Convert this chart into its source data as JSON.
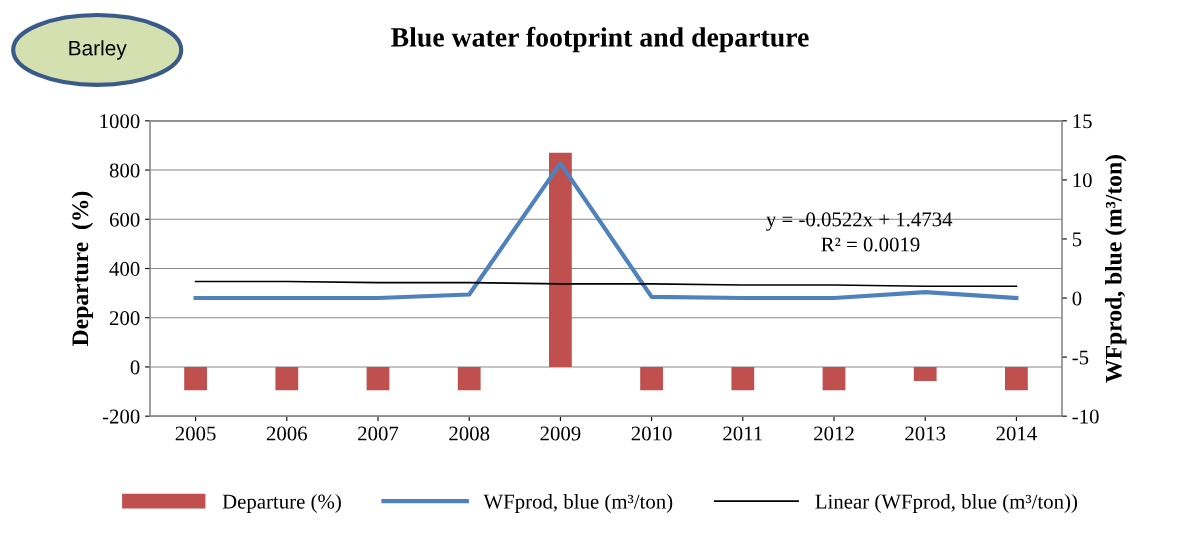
{
  "chart_data": {
    "type": "bar",
    "title": "Blue water footprint and departure",
    "categories": [
      "2005",
      "2006",
      "2007",
      "2008",
      "2009",
      "2010",
      "2011",
      "2012",
      "2013",
      "2014"
    ],
    "series": [
      {
        "name": "Departure (%)",
        "color": "#c0504d",
        "values": [
          -95,
          -95,
          -95,
          -95,
          870,
          -95,
          -95,
          -95,
          -57,
          -95
        ]
      },
      {
        "name": "WFprod, blue (m³/ton)",
        "type": "line",
        "axis": "y2",
        "color": "#4f81bd",
        "values": [
          0,
          0,
          0,
          0.3,
          11.4,
          0.1,
          0,
          0,
          0.5,
          0
        ]
      },
      {
        "name": "Linear (WFprod, blue (m³/ton))",
        "type": "line",
        "axis": "y2",
        "color": "#000000",
        "values": [
          1.4,
          1.4,
          1.3,
          1.3,
          1.2,
          1.2,
          1.1,
          1.1,
          1.0,
          1.0
        ]
      }
    ],
    "ylabel": "Departure  (%)",
    "y2label": "WFprod, blue (m³/ton)",
    "ylim": [
      -200,
      1000
    ],
    "yticks": [
      -200,
      0,
      200,
      400,
      600,
      800,
      1000
    ],
    "y2lim": [
      -10,
      15
    ],
    "y2ticks": [
      -10,
      -5,
      0,
      5,
      10,
      15
    ],
    "grid": "y",
    "legend": "bottom",
    "marker": "none",
    "line_style": "solid",
    "annotations": [
      "y = -0.0522x + 1.4734",
      "R² = 0.0019",
      "Barley"
    ]
  }
}
